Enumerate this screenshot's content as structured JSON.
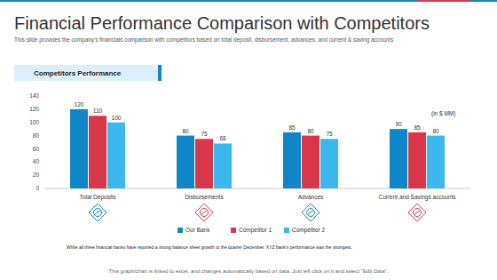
{
  "chart_data": {
    "type": "bar",
    "title": "Financial Performance Comparison with Competitors",
    "subtitle": "This slide provides the company's financials comparison with competitors based on total deposit, disbursement, advances, and current & saving accounts",
    "annotations": [
      "Competitors Performance",
      "(in $ MM)",
      "While all three financial banks have reported a strong balance sheet growth to the quarter December, XYZ bank's performance was the strongest.",
      "This graph/chart is linked to excel, and changes automatically based on data. Just left click on it and select \"Edit Data\"."
    ],
    "categories": [
      "Total Deposits",
      "Disbursements",
      "Advances",
      "Current and Savings accounts"
    ],
    "series": [
      {
        "name": "Our Bank",
        "color": "#0e86c8",
        "values": [
          120,
          80,
          85,
          90
        ]
      },
      {
        "name": "Competitor 1",
        "color": "#d8374a",
        "values": [
          110,
          75,
          80,
          85
        ]
      },
      {
        "name": "Competitor 2",
        "color": "#3cb8ee",
        "values": [
          100,
          68,
          75,
          80
        ]
      }
    ],
    "ylim": [
      0,
      140
    ],
    "yticks": [
      0,
      20,
      40,
      60,
      80,
      100,
      120,
      140
    ],
    "grid": false,
    "legend": "bottom",
    "data_labels": true
  }
}
